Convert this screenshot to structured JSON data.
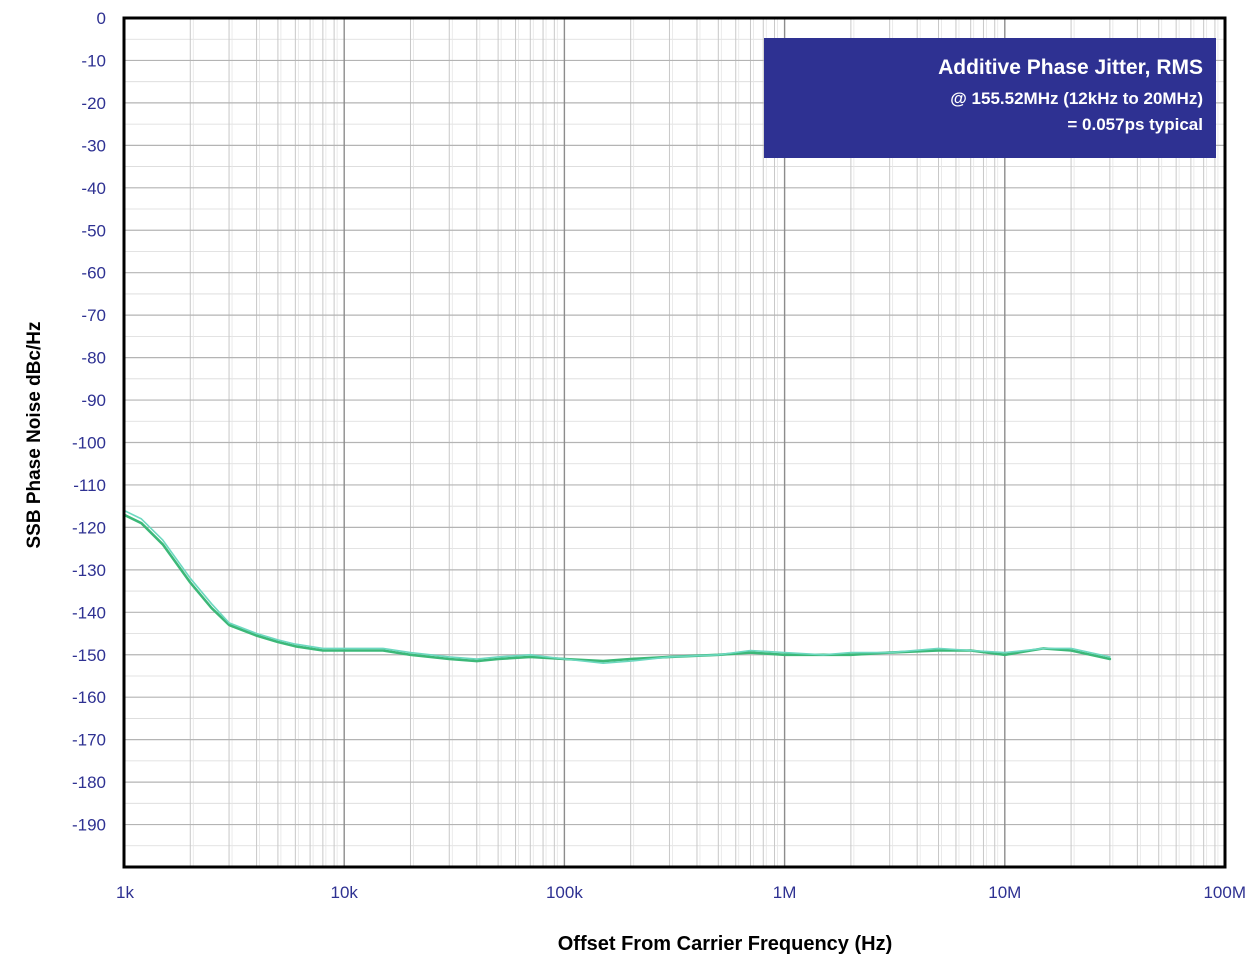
{
  "chart_data": {
    "type": "line",
    "title": "",
    "xlabel": "Offset From Carrier Frequency (Hz)",
    "ylabel": "SSB Phase Noise dBc/Hz",
    "x_scale": "log",
    "xlim": [
      1000,
      100000000
    ],
    "ylim": [
      -200,
      0
    ],
    "grid": true,
    "x_ticks": [
      {
        "value": 1000,
        "label": "1k"
      },
      {
        "value": 10000,
        "label": "10k"
      },
      {
        "value": 100000,
        "label": "100k"
      },
      {
        "value": 1000000,
        "label": "1M"
      },
      {
        "value": 10000000,
        "label": "10M"
      },
      {
        "value": 100000000,
        "label": "100M"
      }
    ],
    "y_ticks": [
      0,
      -10,
      -20,
      -30,
      -40,
      -50,
      -60,
      -70,
      -80,
      -90,
      -100,
      -110,
      -120,
      -130,
      -140,
      -150,
      -160,
      -170,
      -180,
      -190
    ],
    "annotation": {
      "lines": [
        "Additive Phase Jitter, RMS",
        "@ 155.52MHz (12kHz to 20MHz)",
        "= 0.057ps typical"
      ],
      "background": "#2e3192",
      "text_color": "#ffffff",
      "placement": "top-right"
    },
    "series": [
      {
        "color": "#3cb878",
        "x": [
          1000,
          1200,
          1500,
          2000,
          2500,
          3000,
          4000,
          5000,
          6000,
          8000,
          10000,
          15000,
          20000,
          30000,
          40000,
          50000,
          70000,
          100000,
          150000,
          200000,
          300000,
          500000,
          700000,
          1000000,
          1500000,
          2000000,
          3000000,
          5000000,
          7000000,
          10000000,
          15000000,
          20000000,
          30000000
        ],
        "y": [
          -117,
          -119,
          -124,
          -133,
          -139,
          -143,
          -145.5,
          -147,
          -148,
          -149,
          -149,
          -149,
          -150,
          -151,
          -151.5,
          -151,
          -150.5,
          -151,
          -151.5,
          -151,
          -150.5,
          -150,
          -149.5,
          -150,
          -150,
          -150,
          -149.5,
          -149,
          -149,
          -150,
          -148.5,
          -149,
          -151
        ]
      },
      {
        "color": "#6dd8c0",
        "x": [
          1000,
          1200,
          1500,
          2000,
          2500,
          3000,
          4000,
          5000,
          6000,
          8000,
          10000,
          15000,
          20000,
          30000,
          40000,
          50000,
          70000,
          100000,
          150000,
          200000,
          300000,
          500000,
          700000,
          1000000,
          1500000,
          2000000,
          3000000,
          5000000,
          7000000,
          10000000,
          15000000,
          20000000,
          30000000
        ],
        "y": [
          -116,
          -118,
          -123,
          -132,
          -138,
          -142.5,
          -145,
          -146.5,
          -147.5,
          -148.5,
          -148.5,
          -148.5,
          -149.5,
          -150.5,
          -151,
          -150.5,
          -150,
          -151,
          -152,
          -151.5,
          -150.5,
          -150,
          -149,
          -149.5,
          -150,
          -149.5,
          -149.5,
          -148.5,
          -149,
          -149.5,
          -148.5,
          -148.5,
          -150.5
        ]
      }
    ]
  }
}
